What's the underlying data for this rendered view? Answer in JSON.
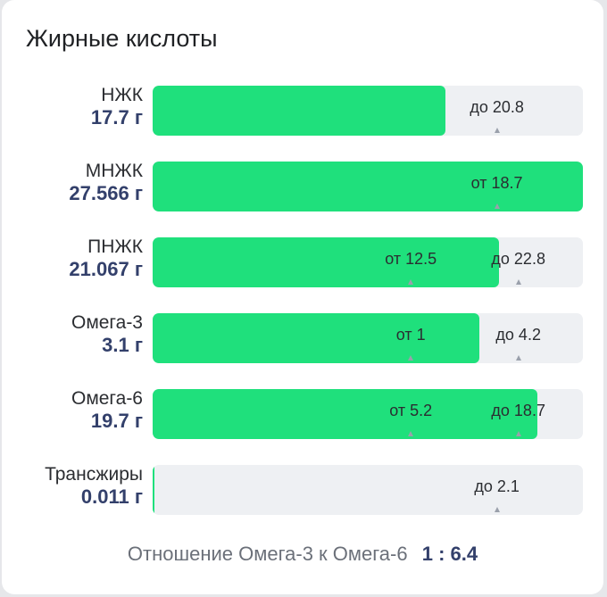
{
  "title": "Жирные кислоты",
  "colors": {
    "fill": "#1fe07c",
    "track": "#eef0f3"
  },
  "rows": [
    {
      "name": "НЖК",
      "amount": "17.7 г",
      "fill_pct": 68,
      "markers": [
        {
          "text": "до 20.8",
          "pos_pct": 80
        }
      ]
    },
    {
      "name": "МНЖК",
      "amount": "27.566 г",
      "fill_pct": 100,
      "markers": [
        {
          "text": "от 18.7",
          "pos_pct": 80
        }
      ]
    },
    {
      "name": "ПНЖК",
      "amount": "21.067 г",
      "fill_pct": 80.5,
      "markers": [
        {
          "text": "от 12.5",
          "pos_pct": 60
        },
        {
          "text": "до 22.8",
          "pos_pct": 85
        }
      ]
    },
    {
      "name": "Омега-3",
      "amount": "3.1 г",
      "fill_pct": 76,
      "markers": [
        {
          "text": "от 1",
          "pos_pct": 60
        },
        {
          "text": "до 4.2",
          "pos_pct": 85
        }
      ]
    },
    {
      "name": "Омега-6",
      "amount": "19.7 г",
      "fill_pct": 89.5,
      "markers": [
        {
          "text": "от 5.2",
          "pos_pct": 60
        },
        {
          "text": "до 18.7",
          "pos_pct": 85
        }
      ]
    },
    {
      "name": "Трансжиры",
      "amount": "0.011 г",
      "fill_pct": 0.5,
      "markers": [
        {
          "text": "до 2.1",
          "pos_pct": 80
        }
      ]
    }
  ],
  "ratio": {
    "label": "Отношение Омега-3 к Омега-6",
    "value": "1 : 6.4"
  }
}
